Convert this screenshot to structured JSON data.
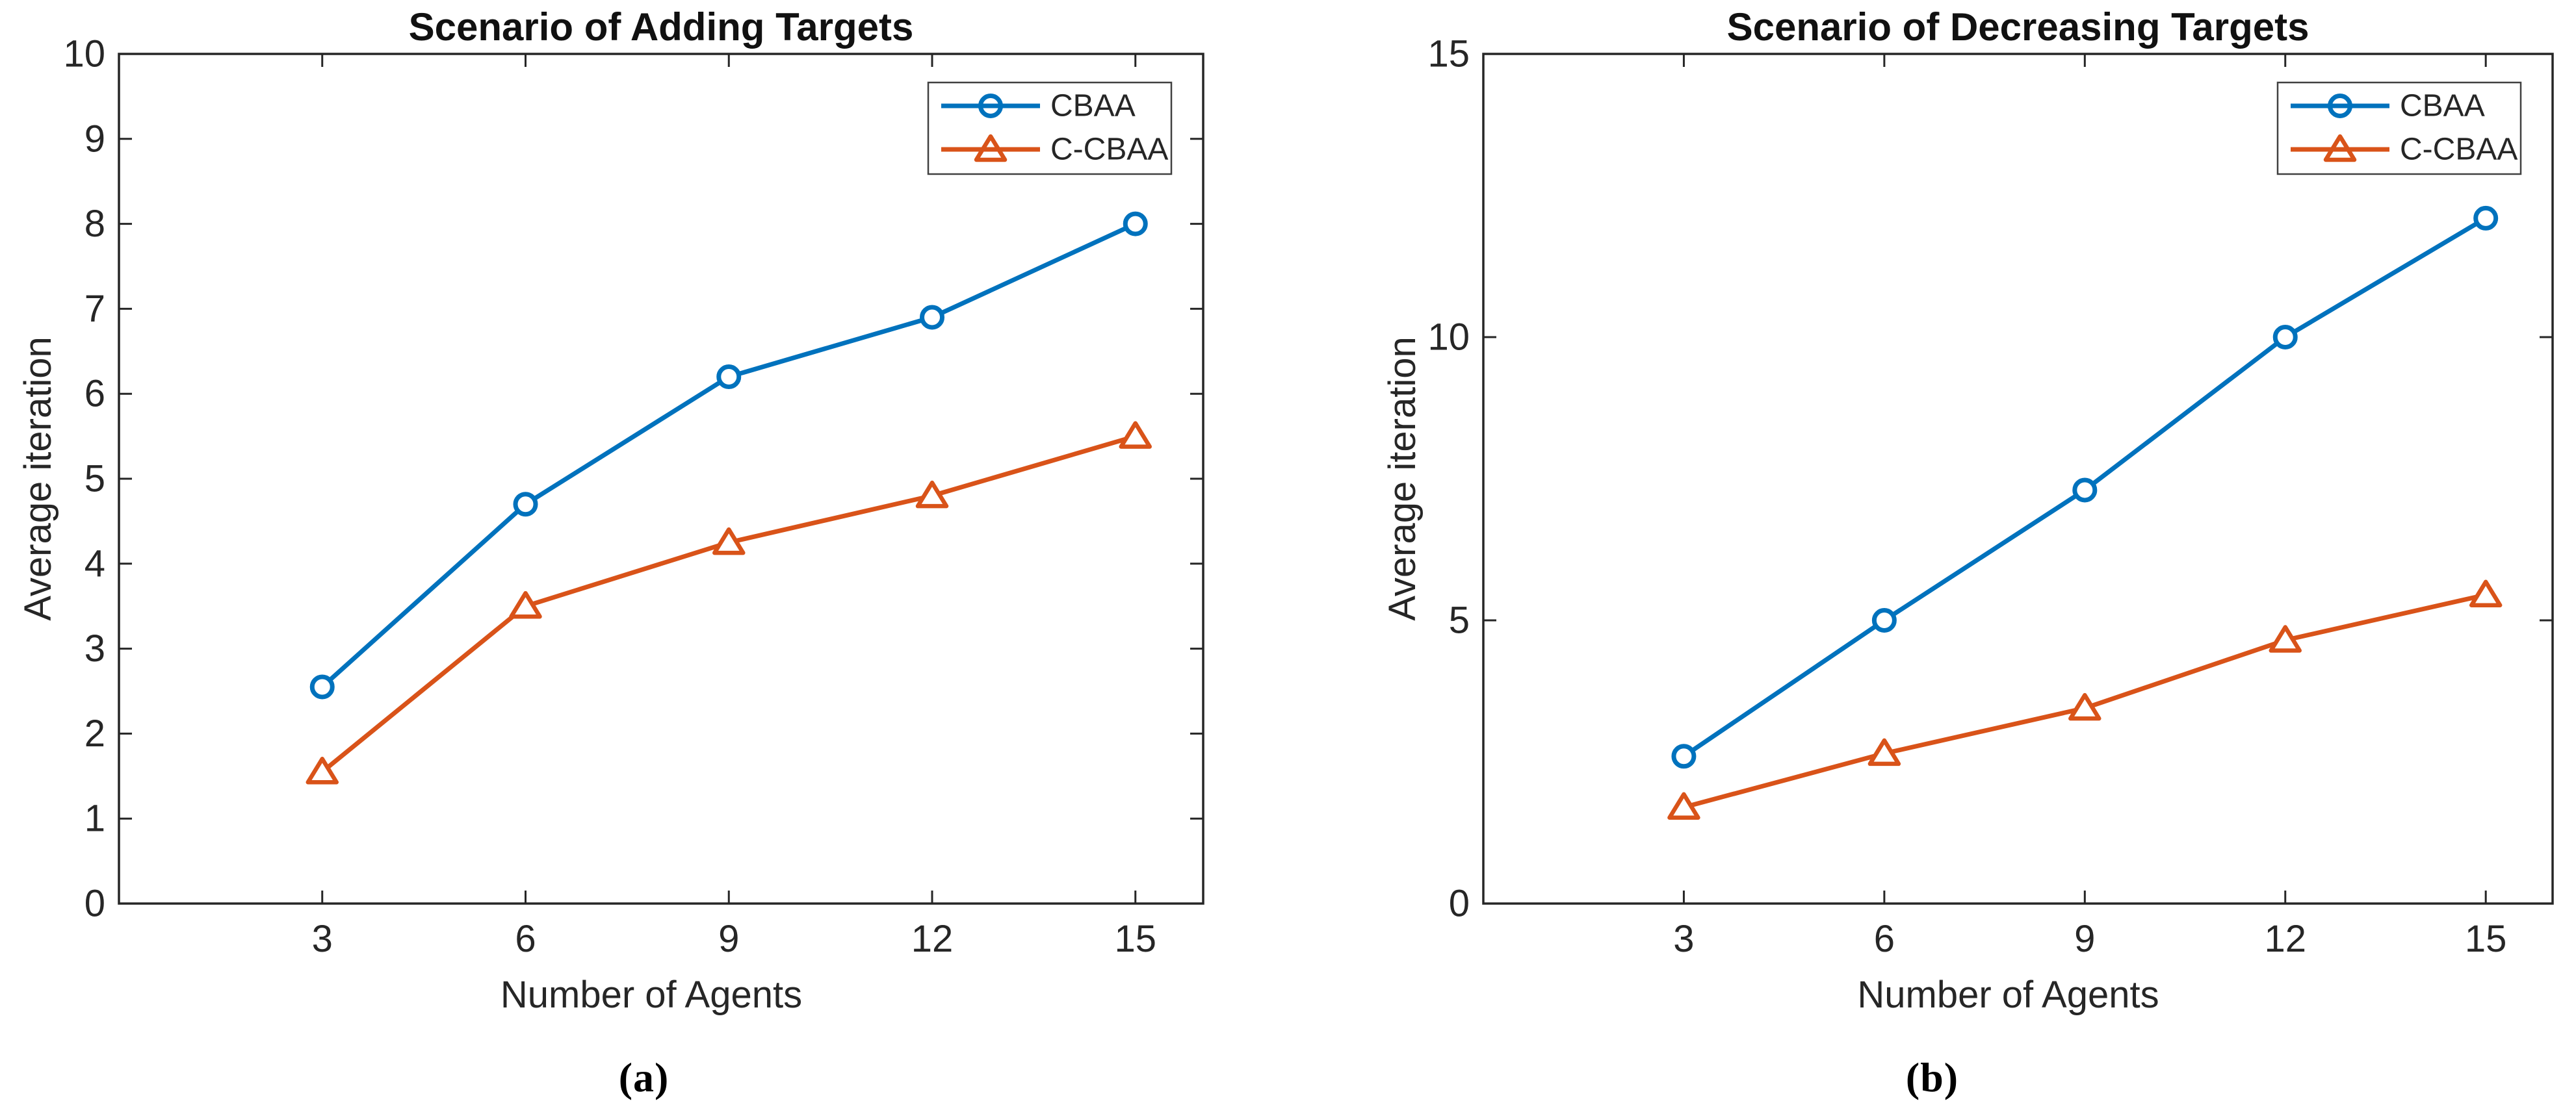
{
  "page": {
    "background": "#ffffff"
  },
  "chart_data": [
    {
      "type": "line",
      "title": "Scenario of Adding Targets",
      "caption": "(a)",
      "xlabel": "Number of Agents",
      "ylabel": "Average iteration",
      "x": [
        3,
        6,
        9,
        12,
        15
      ],
      "xticks": [
        3,
        6,
        9,
        12,
        15
      ],
      "yticks": [
        0,
        1,
        2,
        3,
        4,
        5,
        6,
        7,
        8,
        9,
        10
      ],
      "xlim": [
        0,
        16
      ],
      "ylim": [
        0,
        10
      ],
      "grid": false,
      "legend_position": "top-right",
      "axis_color": "#262626",
      "series": [
        {
          "name": "CBAA",
          "color": "#0072BD",
          "marker": "circle",
          "values": [
            2.55,
            4.7,
            6.2,
            6.9,
            8.0
          ]
        },
        {
          "name": "C-CBAA",
          "color": "#D95319",
          "marker": "triangle",
          "values": [
            1.55,
            3.5,
            4.25,
            4.8,
            5.5
          ]
        }
      ]
    },
    {
      "type": "line",
      "title": "Scenario of Decreasing Targets",
      "caption": "(b)",
      "xlabel": "Number of Agents",
      "ylabel": "Average iteration",
      "x": [
        3,
        6,
        9,
        12,
        15
      ],
      "xticks": [
        3,
        6,
        9,
        12,
        15
      ],
      "yticks": [
        0,
        5,
        10,
        15
      ],
      "xlim": [
        0,
        16
      ],
      "ylim": [
        0,
        15
      ],
      "grid": false,
      "legend_position": "top-right",
      "axis_color": "#262626",
      "series": [
        {
          "name": "CBAA",
          "color": "#0072BD",
          "marker": "circle",
          "values": [
            2.6,
            5.0,
            7.3,
            10.0,
            12.1
          ]
        },
        {
          "name": "C-CBAA",
          "color": "#D95319",
          "marker": "triangle",
          "values": [
            1.7,
            2.65,
            3.45,
            4.65,
            5.45
          ]
        }
      ]
    }
  ]
}
